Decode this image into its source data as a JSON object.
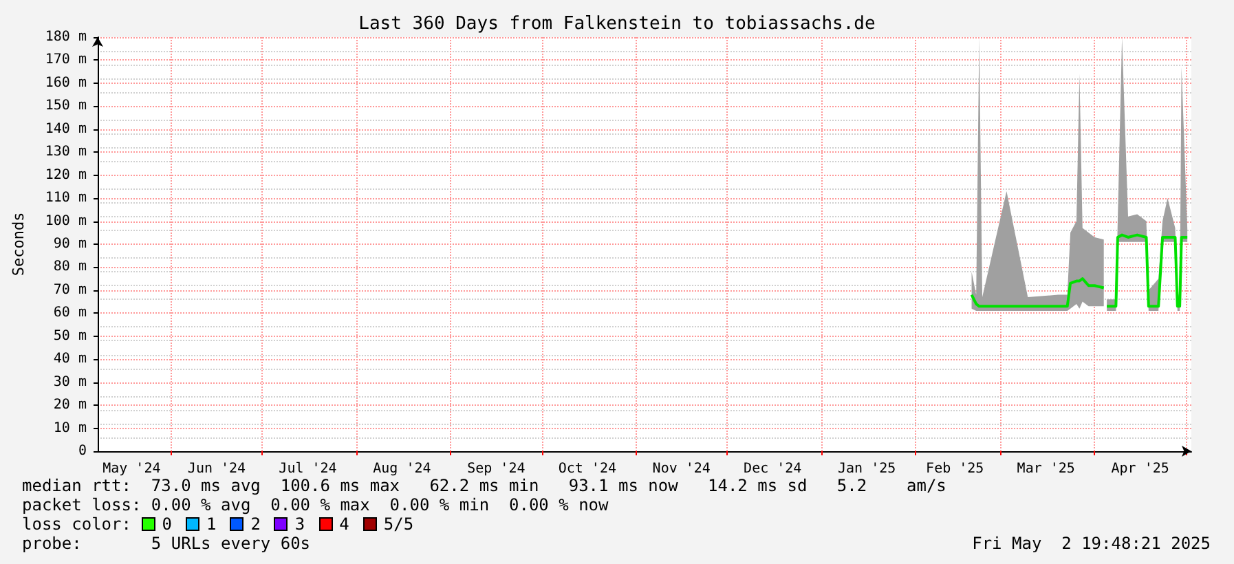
{
  "chart_data": {
    "type": "line",
    "title": "Last 360 Days from Falkenstein to tobiassachs.de",
    "ylabel": "Seconds",
    "x": [
      "2025-02-19T12:00",
      "2025-02-21",
      "2025-02-22",
      "2025-02-23",
      "2025-03-03",
      "2025-03-10",
      "2025-03-20",
      "2025-03-23",
      "2025-03-24",
      "2025-03-26",
      "2025-03-27",
      "2025-03-28",
      "2025-03-30",
      "2025-04-01",
      "2025-04-04",
      "2025-04-04T18:00",
      "2025-04-05",
      "2025-04-08",
      "2025-04-08T14:00",
      "2025-04-10",
      "2025-04-12",
      "2025-04-15",
      "2025-04-18",
      "2025-04-18T18:00",
      "2025-04-22",
      "2025-04-23T08:00",
      "2025-04-25",
      "2025-04-27T12:00",
      "2025-04-28T06:00",
      "2025-04-29",
      "2025-04-29T14:00",
      "2025-05-01T12:00"
    ],
    "series": [
      {
        "color": "#00e000",
        "values": [
          68,
          64,
          63,
          63,
          63,
          63,
          63,
          63,
          73,
          74,
          74,
          75,
          72,
          72,
          71,
          null,
          63,
          63,
          93,
          94,
          93,
          94,
          93,
          63,
          63,
          93,
          93,
          93,
          63,
          63,
          93,
          93
        ],
        "lower": [
          62,
          61,
          61,
          61,
          61,
          61,
          61,
          61,
          62,
          64,
          62,
          65,
          63,
          63,
          63,
          null,
          61,
          61,
          91,
          91,
          91,
          91,
          91,
          61,
          61,
          91,
          91,
          91,
          61,
          61,
          91,
          91
        ],
        "upper": [
          78,
          68,
          180,
          67,
          113,
          67,
          68,
          68,
          95,
          100,
          164,
          97,
          95,
          93,
          92,
          null,
          66,
          66,
          100,
          180,
          102,
          103,
          100,
          70,
          75,
          100,
          110,
          97,
          70,
          66,
          167,
          97
        ]
      }
    ],
    "xlim": [
      "2024-05-07T19:48",
      "2025-05-02T19:48"
    ],
    "xticks": [
      {
        "value": "2024-05-19",
        "label": "May '24"
      },
      {
        "value": "2024-06-01",
        "label": null
      },
      {
        "value": "2024-06-16",
        "label": "Jun '24"
      },
      {
        "value": "2024-07-01",
        "label": null
      },
      {
        "value": "2024-07-16",
        "label": "Jul '24"
      },
      {
        "value": "2024-08-01",
        "label": null
      },
      {
        "value": "2024-08-16",
        "label": "Aug '24"
      },
      {
        "value": "2024-09-01",
        "label": null
      },
      {
        "value": "2024-09-16",
        "label": "Sep '24"
      },
      {
        "value": "2024-10-01",
        "label": null
      },
      {
        "value": "2024-10-16",
        "label": "Oct '24"
      },
      {
        "value": "2024-11-01",
        "label": null
      },
      {
        "value": "2024-11-16",
        "label": "Nov '24"
      },
      {
        "value": "2024-12-01",
        "label": null
      },
      {
        "value": "2024-12-16",
        "label": "Dec '24"
      },
      {
        "value": "2025-01-01",
        "label": null
      },
      {
        "value": "2025-01-16",
        "label": "Jan '25"
      },
      {
        "value": "2025-02-01",
        "label": null
      },
      {
        "value": "2025-02-14",
        "label": "Feb '25"
      },
      {
        "value": "2025-03-01",
        "label": null
      },
      {
        "value": "2025-03-16",
        "label": "Mar '25"
      },
      {
        "value": "2025-04-01",
        "label": null
      },
      {
        "value": "2025-04-16",
        "label": "Apr '25"
      },
      {
        "value": "2025-05-01",
        "label": null
      }
    ],
    "ylim": [
      0,
      180
    ],
    "yticks": [
      0,
      {
        "value": 10,
        "label": "10 m"
      },
      {
        "value": 20,
        "label": "20 m"
      },
      {
        "value": 30,
        "label": "30 m"
      },
      {
        "value": 40,
        "label": "40 m"
      },
      {
        "value": 50,
        "label": "50 m"
      },
      {
        "value": 60,
        "label": "60 m"
      },
      {
        "value": 70,
        "label": "70 m"
      },
      {
        "value": 80,
        "label": "80 m"
      },
      {
        "value": 90,
        "label": "90 m"
      },
      {
        "value": 100,
        "label": "100 m"
      },
      {
        "value": 110,
        "label": "110 m"
      },
      {
        "value": 120,
        "label": "120 m"
      },
      {
        "value": 130,
        "label": "130 m"
      },
      {
        "value": 140,
        "label": "140 m"
      },
      {
        "value": 150,
        "label": "150 m"
      },
      {
        "value": 160,
        "label": "160 m"
      },
      {
        "value": 170,
        "label": "170 m"
      },
      {
        "value": 180,
        "label": "180 m"
      }
    ],
    "grid": true,
    "marker": "none",
    "line_style": "solid",
    "annotations": [
      "median rtt:  73.0 ms avg  100.6 ms max   62.2 ms min   93.1 ms now   14.2 ms sd   5.2    am/s",
      "packet loss: 0.00 % avg  0.00 % max  0.00 % min  0.00 % now",
      "loss color:",
      "0",
      "1",
      "2",
      "3",
      "4",
      "5/5",
      "probe:       5 URLs every 60s",
      "Fri May  2 19:48:21 2025"
    ]
  }
}
